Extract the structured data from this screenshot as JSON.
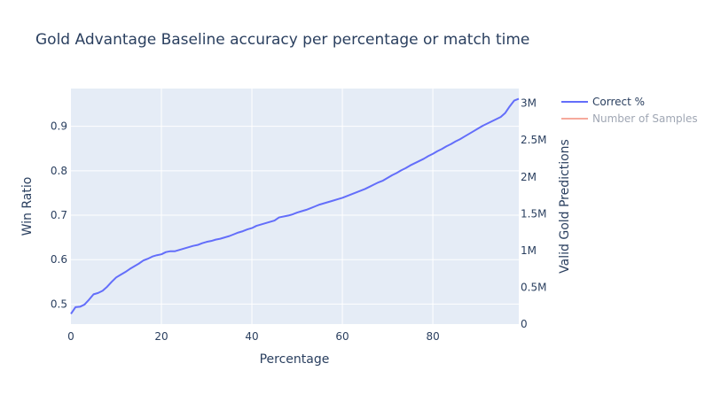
{
  "chart_data": {
    "type": "line",
    "title": "Gold Advantage Baseline accuracy per percentage or match time",
    "xlabel": "Percentage",
    "ylabel": "Win Ratio",
    "y2label": "Valid Gold Predictions",
    "xlim": [
      0,
      99
    ],
    "ylim": [
      0.455,
      0.985
    ],
    "y2lim": [
      0,
      3.2
    ],
    "x_ticks": [
      "0",
      "20",
      "40",
      "60",
      "80"
    ],
    "x_tick_values": [
      0,
      20,
      40,
      60,
      80
    ],
    "y_ticks": [
      "0.5",
      "0.6",
      "0.7",
      "0.8",
      "0.9"
    ],
    "y_tick_values": [
      0.5,
      0.6,
      0.7,
      0.8,
      0.9
    ],
    "y2_ticks": [
      "0",
      "0.5M",
      "1M",
      "1.5M",
      "2M",
      "2.5M",
      "3M"
    ],
    "y2_tick_values": [
      0,
      0.5,
      1,
      1.5,
      2,
      2.5,
      3
    ],
    "series": [
      {
        "name": "Correct %",
        "color": "#636efa",
        "visible": true,
        "x": [
          0,
          1,
          2,
          3,
          4,
          5,
          6,
          7,
          8,
          9,
          10,
          11,
          12,
          13,
          14,
          15,
          16,
          17,
          18,
          19,
          20,
          21,
          22,
          23,
          24,
          25,
          26,
          27,
          28,
          29,
          30,
          31,
          32,
          33,
          34,
          35,
          36,
          37,
          38,
          39,
          40,
          41,
          42,
          43,
          44,
          45,
          46,
          47,
          48,
          49,
          50,
          51,
          52,
          53,
          54,
          55,
          56,
          57,
          58,
          59,
          60,
          61,
          62,
          63,
          64,
          65,
          66,
          67,
          68,
          69,
          70,
          71,
          72,
          73,
          74,
          75,
          76,
          77,
          78,
          79,
          80,
          81,
          82,
          83,
          84,
          85,
          86,
          87,
          88,
          89,
          90,
          91,
          92,
          93,
          94,
          95,
          96,
          97,
          98,
          99
        ],
        "values": [
          0.478,
          0.493,
          0.494,
          0.499,
          0.51,
          0.522,
          0.525,
          0.53,
          0.539,
          0.55,
          0.56,
          0.566,
          0.572,
          0.579,
          0.585,
          0.591,
          0.598,
          0.602,
          0.607,
          0.61,
          0.612,
          0.617,
          0.619,
          0.619,
          0.622,
          0.625,
          0.628,
          0.631,
          0.633,
          0.637,
          0.64,
          0.642,
          0.645,
          0.647,
          0.65,
          0.653,
          0.657,
          0.661,
          0.664,
          0.668,
          0.671,
          0.676,
          0.679,
          0.682,
          0.685,
          0.688,
          0.695,
          0.697,
          0.699,
          0.702,
          0.706,
          0.709,
          0.712,
          0.716,
          0.72,
          0.724,
          0.727,
          0.73,
          0.733,
          0.736,
          0.739,
          0.743,
          0.747,
          0.751,
          0.755,
          0.759,
          0.764,
          0.769,
          0.774,
          0.778,
          0.784,
          0.79,
          0.795,
          0.801,
          0.806,
          0.812,
          0.817,
          0.822,
          0.827,
          0.833,
          0.838,
          0.844,
          0.849,
          0.855,
          0.86,
          0.866,
          0.871,
          0.877,
          0.883,
          0.889,
          0.895,
          0.901,
          0.906,
          0.911,
          0.916,
          0.921,
          0.93,
          0.945,
          0.958,
          0.962
        ]
      },
      {
        "name": "Number of Samples",
        "color": "#ef553b",
        "visible": false
      }
    ],
    "legend_position": "top-right"
  }
}
